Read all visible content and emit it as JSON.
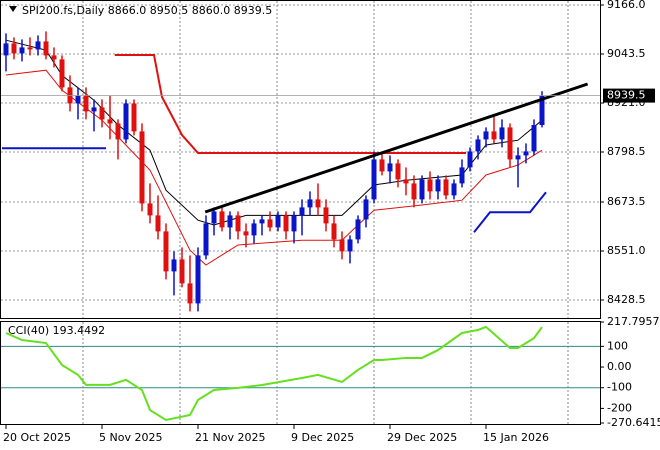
{
  "chart_data": [
    {
      "type": "candlestick",
      "title": "SPI200.fs,Daily  8866.0 8950.5 8860.0 8939.5",
      "up_color": "#0a14c8",
      "down_color": "#e01010",
      "categories": [
        "20 Oct 2025",
        null,
        null,
        null,
        null,
        null,
        null,
        null,
        null,
        null,
        null,
        null,
        "5 Nov 2025",
        null,
        null,
        null,
        null,
        null,
        null,
        null,
        null,
        null,
        null,
        null,
        "21 Nov 2025",
        null,
        null,
        null,
        null,
        null,
        null,
        null,
        null,
        null,
        null,
        null,
        "9 Dec 2025",
        null,
        null,
        null,
        null,
        null,
        null,
        null,
        null,
        null,
        null,
        null,
        "29 Dec 2025",
        null,
        null,
        null,
        null,
        null,
        null,
        null,
        null,
        null,
        null,
        null,
        "15 Jan 2026",
        null,
        null,
        null,
        null,
        null,
        null,
        null
      ],
      "open": [
        9040,
        9070,
        9045,
        9060,
        9055,
        9075,
        9040,
        9030,
        8960,
        8920,
        8940,
        8900,
        8910,
        8880,
        8870,
        8830,
        8920,
        8850,
        8670,
        8640,
        8600,
        8500,
        8530,
        8470,
        8420,
        8540,
        8620,
        8650,
        8610,
        8640,
        8600,
        8590,
        8620,
        8630,
        8610,
        8640,
        8600,
        8640,
        8660,
        8680,
        8660,
        8620,
        8580,
        8550,
        8580,
        8630,
        8680,
        8780,
        8750,
        8770,
        8730,
        8720,
        8680,
        8730,
        8700,
        8730,
        8690,
        8720,
        8760,
        8800,
        8830,
        8850,
        8830,
        8860,
        8780,
        8790,
        8800,
        8866.0
      ],
      "high": [
        9095,
        9085,
        9080,
        9085,
        9090,
        9100,
        9060,
        9040,
        8990,
        8960,
        8960,
        8930,
        8930,
        8940,
        8880,
        8930,
        8930,
        8870,
        8720,
        8690,
        8620,
        8550,
        8560,
        8540,
        8560,
        8640,
        8660,
        8660,
        8650,
        8650,
        8620,
        8630,
        8640,
        8650,
        8650,
        8650,
        8650,
        8680,
        8700,
        8720,
        8680,
        8640,
        8600,
        8590,
        8640,
        8690,
        8800,
        8800,
        8790,
        8780,
        8760,
        8740,
        8740,
        8750,
        8740,
        8740,
        8730,
        8780,
        8810,
        8840,
        8860,
        8890,
        8880,
        8870,
        8810,
        8820,
        8880,
        8950.5
      ],
      "low": [
        9000,
        9030,
        9025,
        9040,
        9040,
        9030,
        9010,
        8950,
        8900,
        8880,
        8880,
        8850,
        8860,
        8830,
        8780,
        8820,
        8840,
        8650,
        8620,
        8580,
        8480,
        8440,
        8460,
        8400,
        8400,
        8530,
        8590,
        8600,
        8580,
        8580,
        8560,
        8570,
        8590,
        8600,
        8600,
        8580,
        8570,
        8590,
        8640,
        8640,
        8600,
        8560,
        8530,
        8520,
        8570,
        8610,
        8670,
        8740,
        8720,
        8710,
        8690,
        8660,
        8670,
        8680,
        8680,
        8680,
        8680,
        8710,
        8750,
        8780,
        8810,
        8820,
        8810,
        8760,
        8710,
        8770,
        8790,
        8860.0
      ],
      "close": [
        9070,
        9045,
        9060,
        9055,
        9075,
        9040,
        9030,
        8960,
        8920,
        8940,
        8900,
        8910,
        8880,
        8870,
        8830,
        8920,
        8850,
        8670,
        8640,
        8600,
        8500,
        8530,
        8470,
        8420,
        8540,
        8620,
        8650,
        8610,
        8640,
        8600,
        8590,
        8620,
        8630,
        8610,
        8640,
        8600,
        8640,
        8660,
        8680,
        8660,
        8620,
        8580,
        8550,
        8580,
        8630,
        8680,
        8780,
        8750,
        8770,
        8730,
        8720,
        8680,
        8730,
        8700,
        8730,
        8690,
        8720,
        8760,
        8800,
        8830,
        8850,
        8830,
        8860,
        8780,
        8790,
        8800,
        8866,
        8939.5
      ],
      "ylim": [
        8383.5,
        9178.5
      ],
      "yticks": [
        {
          "value": 9166,
          "label": "9166.0"
        },
        {
          "value": 9043.5,
          "label": "9043.5"
        },
        {
          "value": 8921,
          "label": "8921.0"
        },
        {
          "value": 8798.5,
          "label": "8798.5"
        },
        {
          "value": 8673.5,
          "label": "8673.5"
        },
        {
          "value": 8551,
          "label": "8551.0"
        },
        {
          "value": 8428.5,
          "label": "8428.5"
        }
      ],
      "grid": true,
      "overlays": [
        {
          "color": "#000000",
          "width": 1,
          "x": [
            0,
            5,
            7,
            11,
            14,
            18,
            20,
            24,
            26,
            30,
            37,
            42,
            44,
            46,
            50,
            57,
            60,
            64,
            67
          ],
          "values": [
            9078,
            9053,
            8990,
            8928,
            8866,
            8803,
            8703,
            8628,
            8616,
            8640,
            8640,
            8640,
            8678,
            8716,
            8728,
            8741,
            8816,
            8828,
            8878
          ]
        },
        {
          "color": "#e01010",
          "width": 1,
          "x": [
            0,
            5,
            7,
            12,
            18,
            23,
            25,
            29,
            37,
            42,
            44,
            46,
            52,
            57,
            60,
            64,
            67
          ],
          "values": [
            8991,
            9003,
            8953,
            8878,
            8753,
            8553,
            8516,
            8566,
            8578,
            8578,
            8616,
            8653,
            8666,
            8678,
            8741,
            8766,
            8803
          ]
        },
        {
          "color": "#e01010",
          "width": 2,
          "x": [
            13.6,
            18.5,
            19.5,
            22,
            24,
            57.5
          ],
          "values": [
            9041,
            9041,
            8936,
            8841,
            8796,
            8796
          ]
        },
        {
          "color": "#0a14c8",
          "width": 2,
          "x": [
            -0.5,
            12.5
          ],
          "values": [
            8808,
            8808
          ]
        },
        {
          "color": "#0a14c8",
          "width": 2,
          "x": [
            58.5,
            60.5,
            65.5,
            67.5
          ],
          "values": [
            8598,
            8648,
            8648,
            8698
          ]
        },
        {
          "color": "#000000",
          "width": 3,
          "x": [
            24.9,
            72.7
          ],
          "values": [
            8648.5,
            8968.5
          ]
        }
      ]
    },
    {
      "type": "line",
      "label": "CCI(40) 193.4492",
      "color": "#66e01e",
      "x": [
        0,
        2,
        5,
        7,
        9,
        10,
        13,
        15,
        17,
        18,
        20,
        23,
        24,
        26,
        29,
        32,
        37,
        39,
        42,
        44,
        46,
        47,
        50,
        52,
        54,
        57,
        59,
        60,
        63,
        64,
        66,
        67
      ],
      "values": [
        164.6,
        130.7,
        116,
        10,
        -38,
        -86,
        -86,
        -62,
        -111,
        -208,
        -256,
        -232,
        -159,
        -111,
        -101,
        -87,
        -53,
        -38,
        -72,
        -14,
        34,
        34,
        44,
        44,
        82,
        164.6,
        179,
        194,
        92,
        92,
        140,
        193.4492
      ],
      "ylim": [
        -270.6415,
        217.7957
      ],
      "yticks": [
        217.7957,
        100,
        {
          "value": 0,
          "label": "0.00"
        },
        -100,
        -200,
        -270.6415
      ],
      "levels": [
        100,
        -100
      ],
      "level_color": "#2e8b8b"
    }
  ]
}
